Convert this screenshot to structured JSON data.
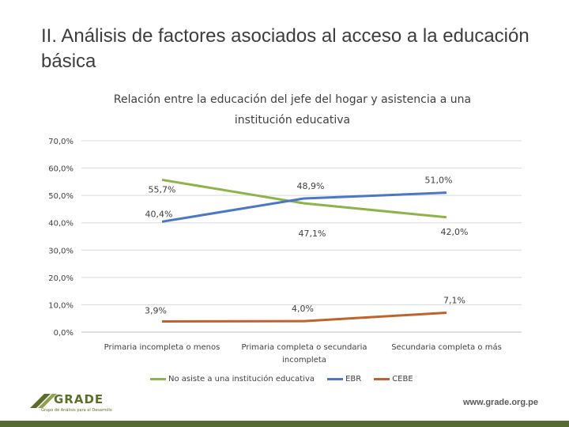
{
  "slide": {
    "title": "II. Análisis de factores asociados al acceso a la educación básica",
    "website": "www.grade.org.pe",
    "logo": {
      "name": "GRADE",
      "subtitle": "Grupo de Análisis para el Desarrollo"
    },
    "colors": {
      "brand": "#586a33"
    }
  },
  "chart_data": {
    "type": "line",
    "title": "Relación entre la educación del jefe del hogar y asistencia a una institución educativa",
    "categories": [
      "Primaria incompleta o menos",
      "Primaria completa o secundaria incompleta",
      "Secundaria completa o más"
    ],
    "category_lines": [
      [
        "Primaria incompleta o menos"
      ],
      [
        "Primaria completa o secundaria",
        "incompleta"
      ],
      [
        "Secundaria completa o más"
      ]
    ],
    "y_ticks": [
      "0,0%",
      "10,0%",
      "20,0%",
      "30,0%",
      "40,0%",
      "50,0%",
      "60,0%",
      "70,0%"
    ],
    "ylim": [
      0,
      70
    ],
    "grid": true,
    "legend_position": "bottom",
    "series": [
      {
        "name": "No asiste a una institución educativa",
        "color": "#8db44a",
        "values": [
          55.7,
          47.1,
          42.0
        ],
        "labels": [
          "55,7%",
          "47,1%",
          "42,0%"
        ]
      },
      {
        "name": "EBR",
        "color": "#4a78c4",
        "values": [
          40.4,
          48.9,
          51.0
        ],
        "labels": [
          "40,4%",
          "48,9%",
          "51,0%"
        ]
      },
      {
        "name": "CEBE",
        "color": "#c0622a",
        "values": [
          3.9,
          4.0,
          7.1
        ],
        "labels": [
          "3,9%",
          "4,0%",
          "7,1%"
        ]
      }
    ]
  }
}
